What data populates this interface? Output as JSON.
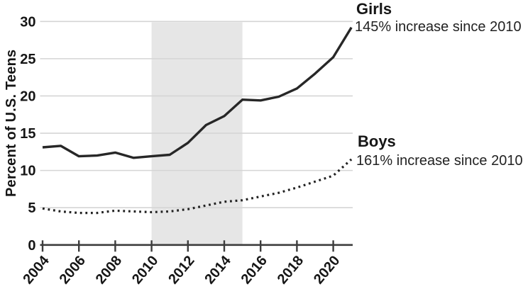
{
  "figure": {
    "background": "#ffffff"
  },
  "chart_data": {
    "type": "line",
    "title": "",
    "xlabel": "",
    "ylabel": "Percent of U.S. Teens",
    "ylim": [
      0,
      30
    ],
    "xlim": [
      2004,
      2021
    ],
    "grid": "horizontal",
    "legend_position": "right-annotations",
    "x": [
      2004,
      2005,
      2006,
      2007,
      2008,
      2009,
      2010,
      2011,
      2012,
      2013,
      2014,
      2015,
      2016,
      2017,
      2018,
      2019,
      2020,
      2021
    ],
    "x_ticks": [
      2004,
      2006,
      2008,
      2010,
      2012,
      2014,
      2016,
      2018,
      2020
    ],
    "x_tick_labels": [
      "2004",
      "2006",
      "2008",
      "2010",
      "2012",
      "2014",
      "2016",
      "2018",
      "2020"
    ],
    "y_ticks": [
      0,
      5,
      10,
      15,
      20,
      25,
      30
    ],
    "y_tick_labels": [
      "0",
      "5",
      "10",
      "15",
      "20",
      "25",
      "30"
    ],
    "shaded_region": {
      "from_x": 2010,
      "to_x": 2015,
      "color": "#e6e6e6"
    },
    "series": [
      {
        "name": "Girls",
        "annotation": "145% increase since 2010",
        "line_style": "solid",
        "color": "#272727",
        "values": [
          13.1,
          13.3,
          11.9,
          12.0,
          12.4,
          11.7,
          11.9,
          12.1,
          13.7,
          16.1,
          17.3,
          19.5,
          19.4,
          19.9,
          21.0,
          23.0,
          25.2,
          29.2
        ]
      },
      {
        "name": "Boys",
        "annotation": "161% increase since 2010",
        "line_style": "dotted",
        "color": "#222222",
        "values": [
          4.9,
          4.5,
          4.3,
          4.3,
          4.6,
          4.5,
          4.4,
          4.5,
          4.8,
          5.3,
          5.8,
          6.0,
          6.5,
          7.0,
          7.7,
          8.5,
          9.3,
          11.5
        ]
      }
    ],
    "axis_color": "#3c3c3c",
    "grid_color": "#d5d5d5",
    "tick_label_color": "#161616"
  }
}
